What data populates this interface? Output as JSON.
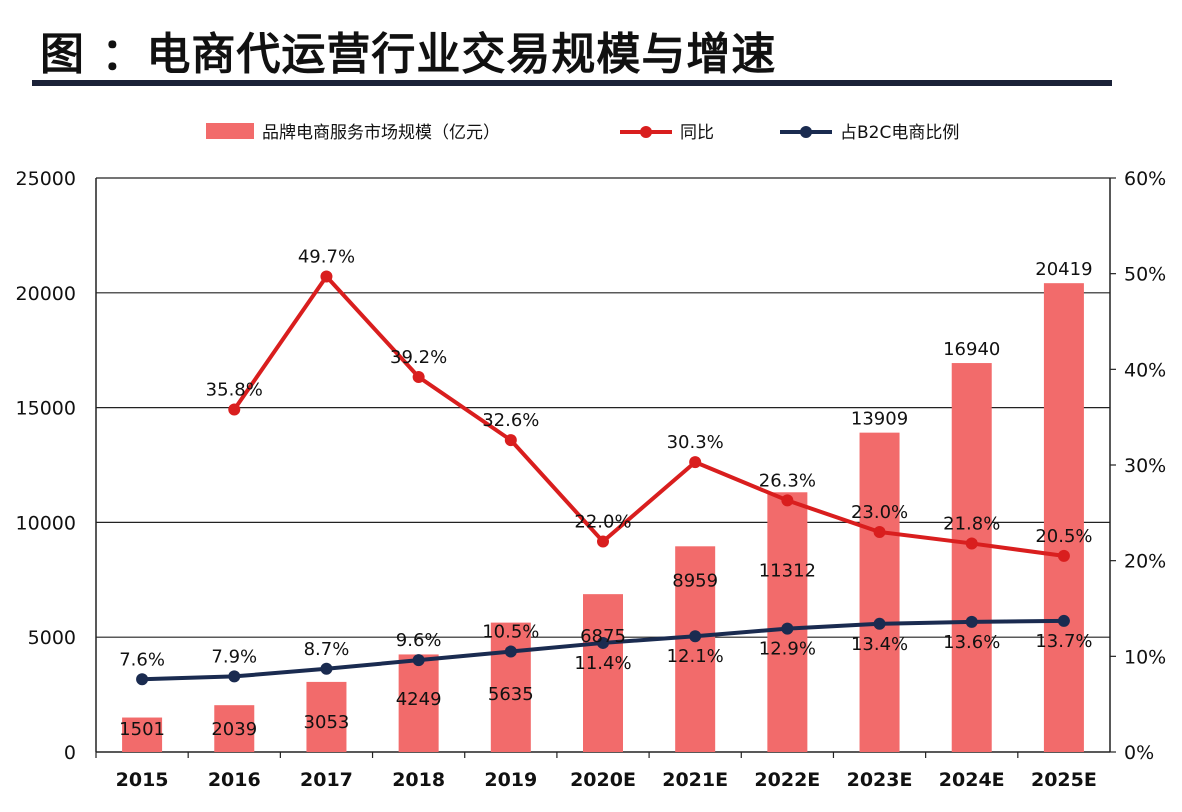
{
  "title": "图 ：电商代运营行业交易规模与增速",
  "chart_data": {
    "type": "bar",
    "categories": [
      "2015",
      "2016",
      "2017",
      "2018",
      "2019",
      "2020E",
      "2021E",
      "2022E",
      "2023E",
      "2024E",
      "2025E"
    ],
    "series": [
      {
        "name": "品牌电商服务市场规模（亿元）",
        "type": "bar",
        "axis": "left",
        "values": [
          1501,
          2039,
          3053,
          4249,
          5635,
          6875,
          8959,
          11312,
          13909,
          16940,
          20419
        ],
        "labels": [
          "1501",
          "2039",
          "3053",
          "4249",
          "5635",
          "6875",
          "8959",
          "11312",
          "13909",
          "16940",
          "20419"
        ]
      },
      {
        "name": "同比",
        "type": "line",
        "axis": "right",
        "values": [
          null,
          35.8,
          49.7,
          39.2,
          32.6,
          22.0,
          30.3,
          26.3,
          23.0,
          21.8,
          20.5
        ],
        "labels": [
          "",
          "35.8%",
          "49.7%",
          "39.2%",
          "32.6%",
          "22.0%",
          "30.3%",
          "26.3%",
          "23.0%",
          "21.8%",
          "20.5%"
        ]
      },
      {
        "name": "占B2C电商比例",
        "type": "line",
        "axis": "right",
        "values": [
          7.6,
          7.9,
          8.7,
          9.6,
          10.5,
          11.4,
          12.1,
          12.9,
          13.4,
          13.6,
          13.7
        ],
        "labels": [
          "7.6%",
          "7.9%",
          "8.7%",
          "9.6%",
          "10.5%",
          "11.4%",
          "12.1%",
          "12.9%",
          "13.4%",
          "13.6%",
          "13.7%"
        ]
      }
    ],
    "y_left": {
      "min": 0,
      "max": 25000,
      "ticks": [
        "0",
        "5000",
        "10000",
        "15000",
        "20000",
        "25000"
      ]
    },
    "y_right": {
      "min": 0,
      "max": 60,
      "ticks": [
        "0%",
        "10%",
        "20%",
        "30%",
        "40%",
        "50%",
        "60%"
      ]
    },
    "grid": true,
    "legend_position": "top",
    "colors": {
      "bar": "#f26b6b",
      "yoy_line": "#d91e1e",
      "share_line": "#1a2b50",
      "grid": "#222222"
    }
  }
}
